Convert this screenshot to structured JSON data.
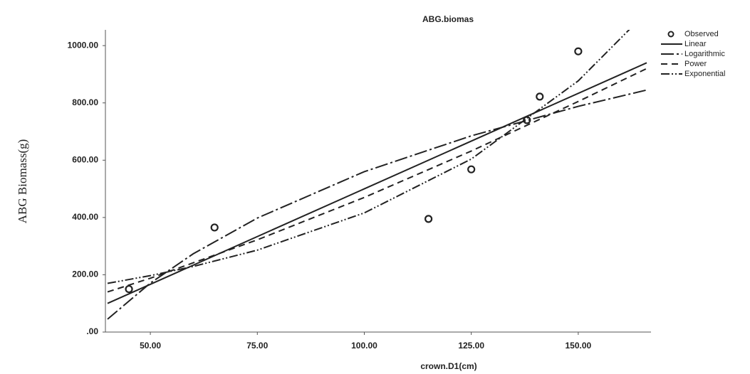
{
  "chart_data": {
    "type": "curve-fit",
    "title": "ABG.biomas",
    "x_label": "crown.D1(cm)",
    "y_label": "ABG Biomass(g)",
    "xlim": [
      39.5,
      167
    ],
    "ylim": [
      0,
      1055
    ],
    "xticks": [
      {
        "value": 50,
        "label": "50.00"
      },
      {
        "value": 75,
        "label": "75.00"
      },
      {
        "value": 100,
        "label": "100.00"
      },
      {
        "value": 125,
        "label": "125.00"
      },
      {
        "value": 150,
        "label": "150.00"
      }
    ],
    "yticks": [
      {
        "value": 0,
        "label": ".00"
      },
      {
        "value": 200,
        "label": "200.00"
      },
      {
        "value": 400,
        "label": "400.00"
      },
      {
        "value": 600,
        "label": "600.00"
      },
      {
        "value": 800,
        "label": "800.00"
      },
      {
        "value": 1000,
        "label": "1000.00"
      }
    ],
    "grid": false,
    "legend": "right",
    "series": [
      {
        "name": "Observed",
        "kind": "points",
        "color": "#222222",
        "x": [
          45,
          65,
          115,
          125,
          138,
          141,
          150
        ],
        "values": [
          150,
          365,
          395,
          568,
          740,
          822,
          980
        ]
      },
      {
        "name": "Linear",
        "kind": "line",
        "color": "#222222",
        "dash": "none",
        "x": [
          40,
          166
        ],
        "values": [
          100,
          940
        ]
      },
      {
        "name": "Logarithmic",
        "kind": "line",
        "color": "#222222",
        "dash": "18 4 3 4",
        "x": [
          40,
          50,
          60,
          75,
          100,
          125,
          150,
          166
        ],
        "values": [
          45,
          171,
          273,
          398,
          560,
          685,
          788,
          845
        ]
      },
      {
        "name": "Power",
        "kind": "line",
        "color": "#222222",
        "dash": "9 6",
        "x": [
          40,
          50,
          75,
          100,
          125,
          150,
          166
        ],
        "values": [
          140,
          188,
          322,
          470,
          632,
          805,
          920
        ]
      },
      {
        "name": "Exponential",
        "kind": "line",
        "color": "#222222",
        "dash": "12 3 2 3 2 3",
        "x": [
          40,
          50,
          60,
          75,
          100,
          125,
          150,
          166
        ],
        "values": [
          170,
          197,
          229,
          286,
          416,
          604,
          877,
          1117
        ]
      }
    ]
  }
}
